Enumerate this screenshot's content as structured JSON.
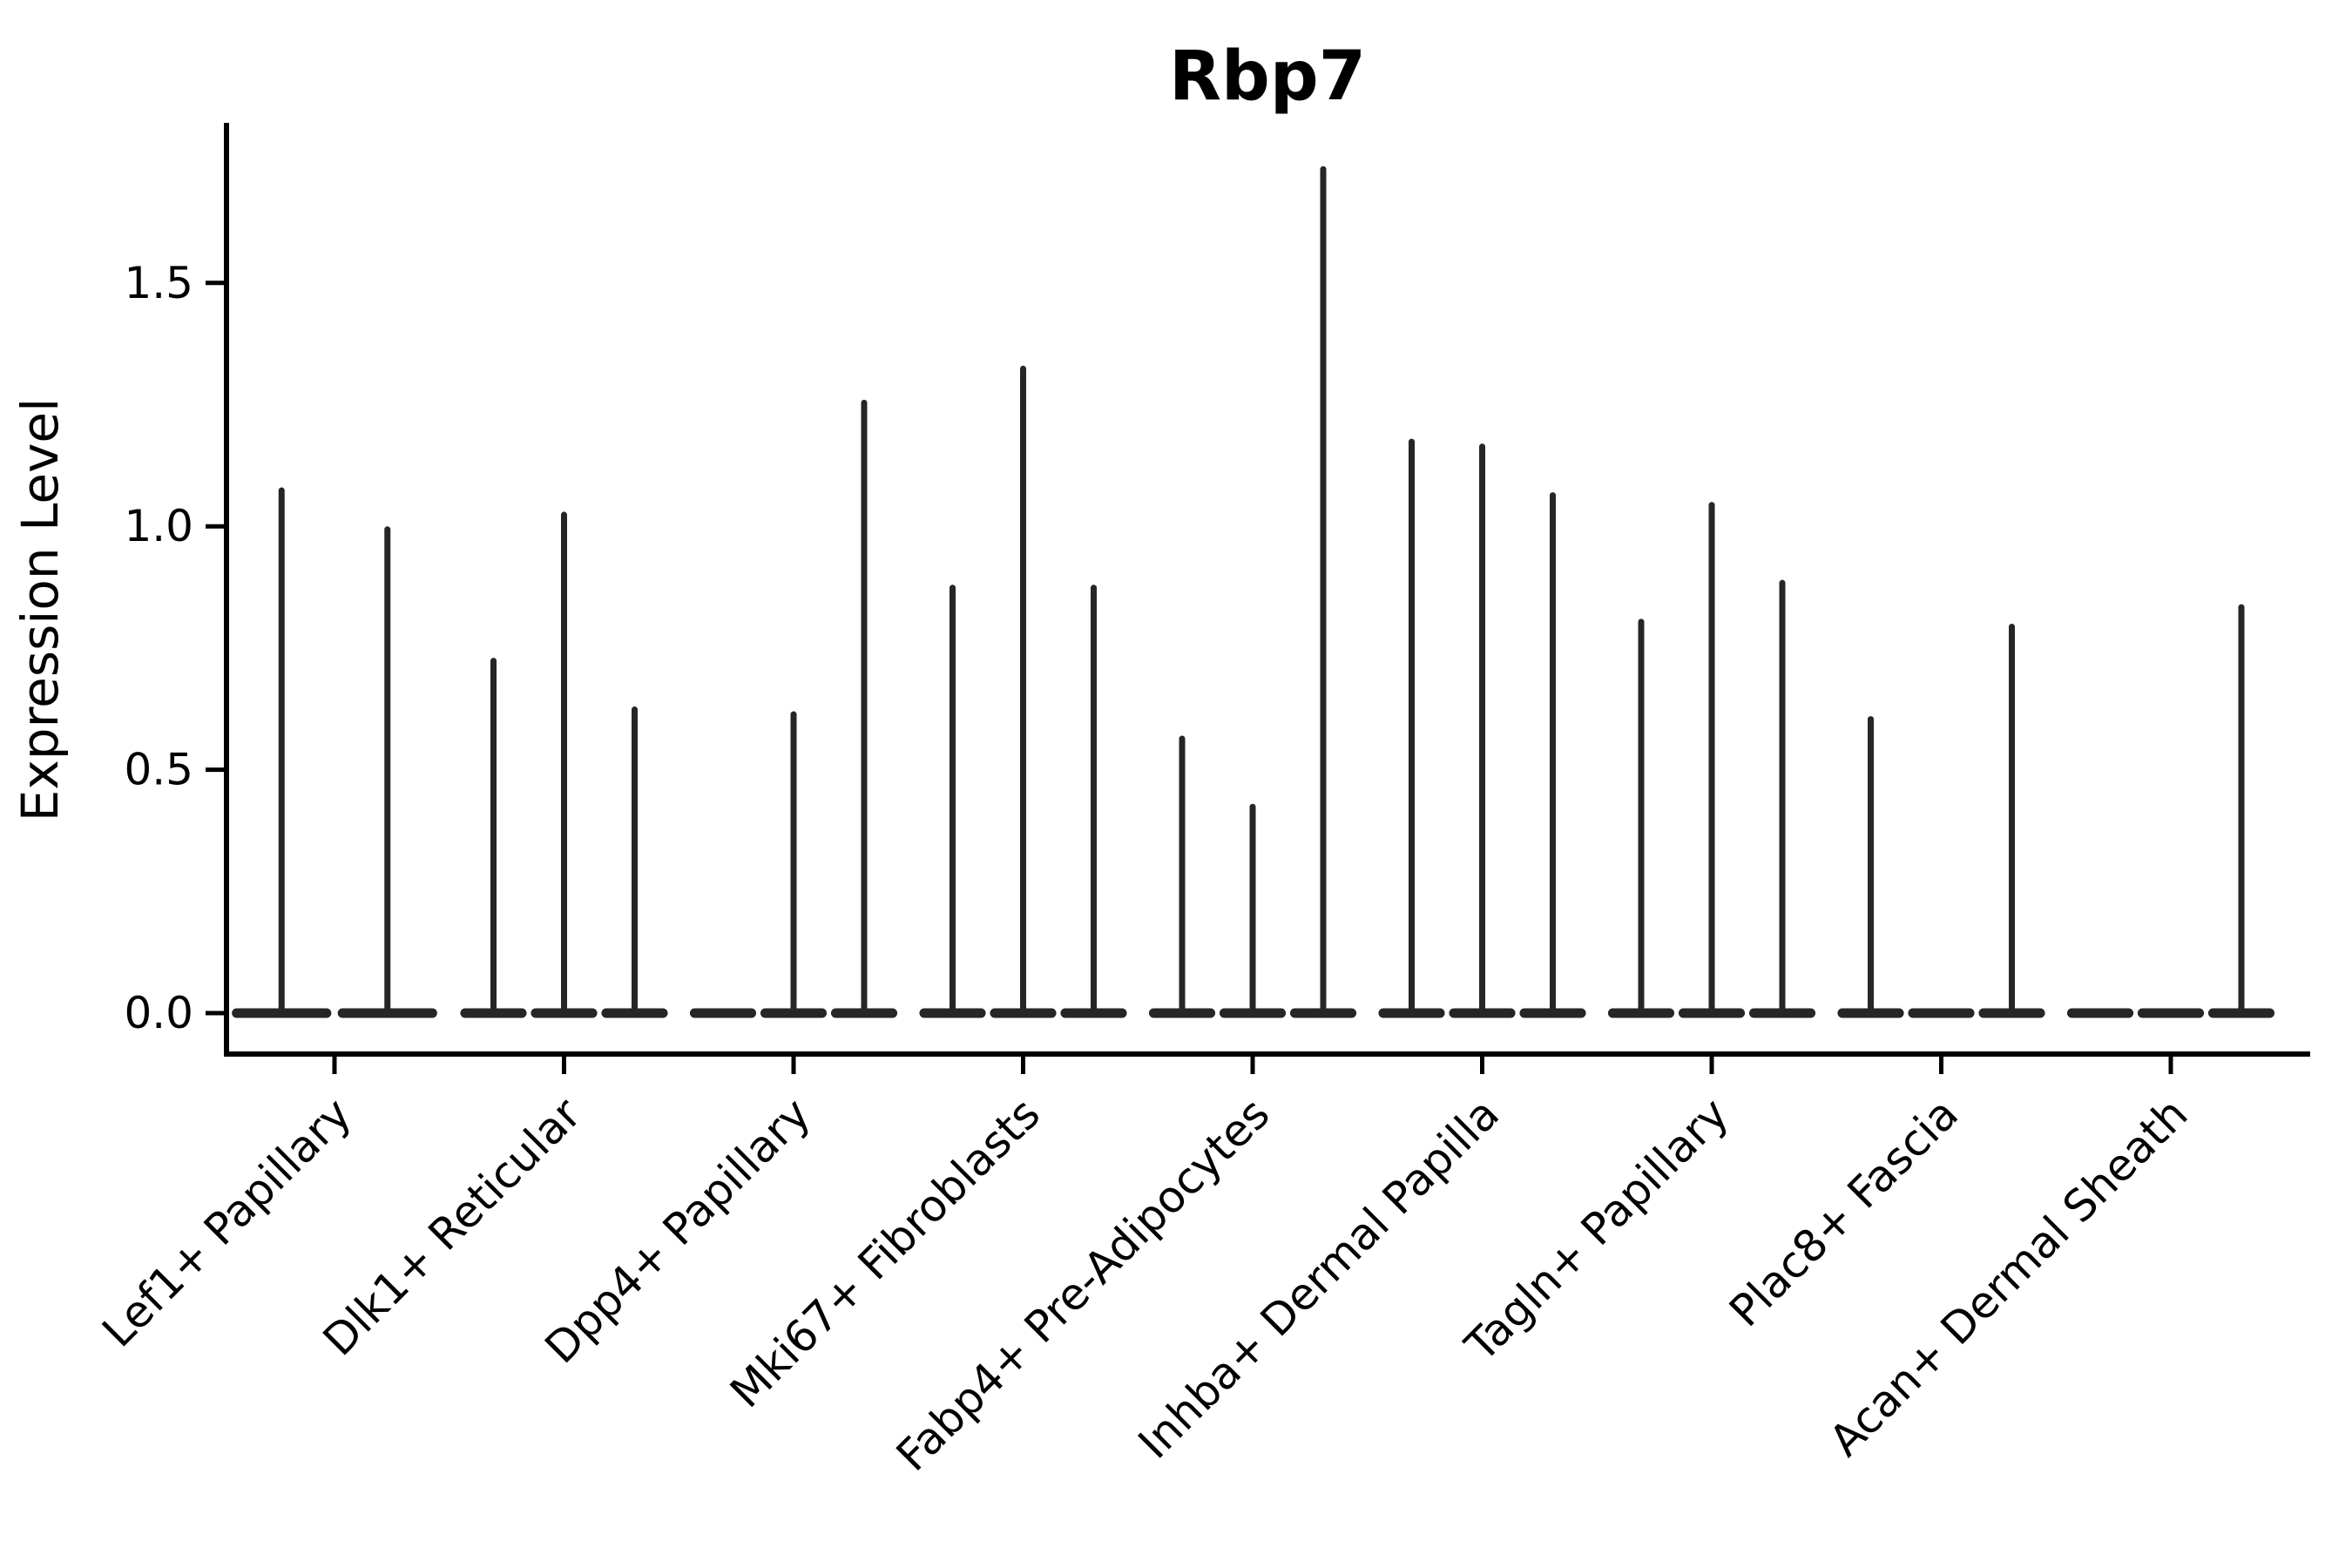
{
  "chart_data": {
    "type": "violin",
    "title": "Rbp7",
    "xlabel": "",
    "ylabel": "Expression Level",
    "ytick_labels": [
      "0.0",
      "0.5",
      "1.0",
      "1.5"
    ],
    "ytick_values": [
      0.0,
      0.5,
      1.0,
      1.5
    ],
    "ylim": [
      -0.08,
      1.83
    ],
    "grid": false,
    "legend": "none",
    "background": "#ffffff",
    "axis_color": "#000000",
    "violin_color": "#262626",
    "categories": [
      "Lef1+ Papillary",
      "Dlk1+ Reticular",
      "Dpp4+ Papillary",
      "Mki67+ Fibroblasts",
      "Fabp4+ Pre-Adipocytes",
      "Inhba+ Dermal Papilla",
      "Tagln+ Papillary",
      "Plac8+ Fascia",
      "Acan+ Dermal Sheath"
    ],
    "groups": [
      {
        "category": "Lef1+ Papillary",
        "violin_peaks": [
          1.08,
          1.0
        ]
      },
      {
        "category": "Dlk1+ Reticular",
        "violin_peaks": [
          0.73,
          1.03,
          0.63
        ]
      },
      {
        "category": "Dpp4+ Papillary",
        "violin_peaks": [
          0,
          0.62,
          1.26
        ]
      },
      {
        "category": "Mki67+ Fibroblasts",
        "violin_peaks": [
          0.88,
          1.33,
          0.88
        ]
      },
      {
        "category": "Fabp4+ Pre-Adipocytes",
        "violin_peaks": [
          0.57,
          0.43,
          1.74
        ]
      },
      {
        "category": "Inhba+ Dermal Papilla",
        "violin_peaks": [
          1.18,
          1.17,
          1.07
        ]
      },
      {
        "category": "Tagln+ Papillary",
        "violin_peaks": [
          0.81,
          1.05,
          0.89
        ]
      },
      {
        "category": "Plac8+ Fascia",
        "violin_peaks": [
          0.61,
          0,
          0.8
        ]
      },
      {
        "category": "Acan+ Dermal Sheath",
        "violin_peaks": [
          0,
          0,
          0.84
        ]
      }
    ]
  }
}
